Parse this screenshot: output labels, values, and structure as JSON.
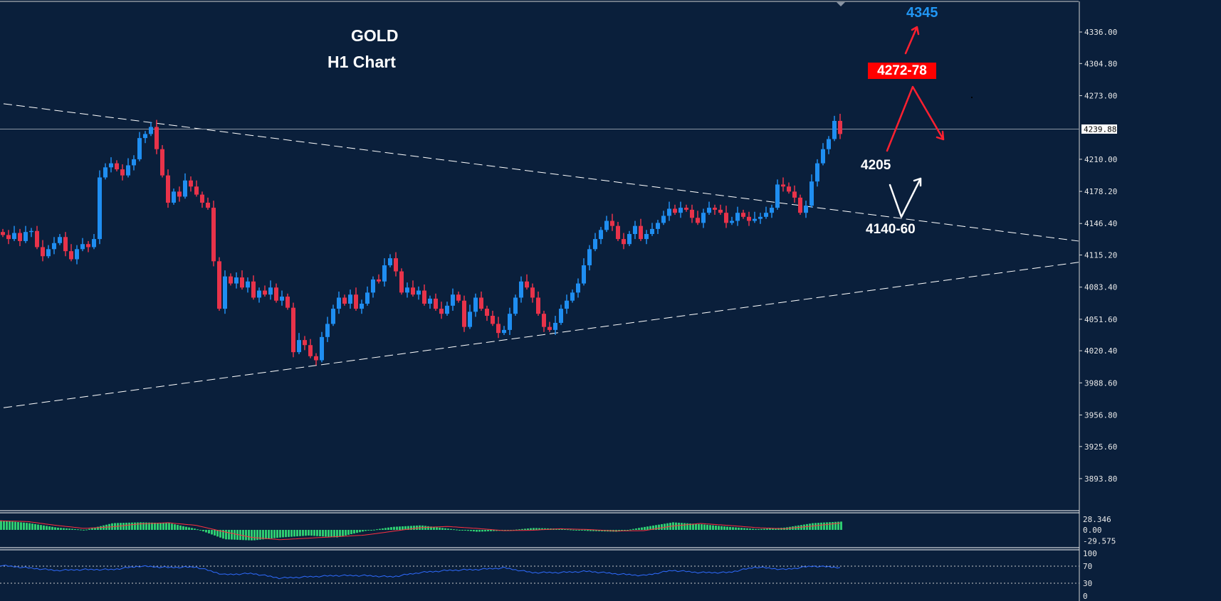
{
  "title": {
    "symbol": "GOLD",
    "timeframe": "H1 Chart"
  },
  "annotations": {
    "target_high": "4345",
    "resistance": "4272-78",
    "pivot": "4205",
    "support": "4140-60"
  },
  "colors": {
    "background": "#0a1f3b",
    "bull_candle": "#1f8ef1",
    "bear_candle": "#e8334a",
    "macd_histogram": "#2ecc71",
    "macd_signal": "#ff3040",
    "rsi_line": "#2f6bff",
    "resistance_box": "#ff0000",
    "target_text": "#2196f3"
  },
  "chart_data": {
    "type": "candlestick",
    "symbol": "GOLD",
    "timeframe": "H1",
    "ylim": [
      3870,
      4370
    ],
    "y_ticks": [
      "4336.00",
      "4304.80",
      "4273.00",
      "4210.00",
      "4178.20",
      "4146.40",
      "4115.20",
      "4083.40",
      "4051.60",
      "4020.40",
      "3988.60",
      "3956.80",
      "3925.60",
      "3893.80"
    ],
    "y_tick_values": [
      4336.0,
      4304.8,
      4273.0,
      4210.0,
      4178.2,
      4146.4,
      4115.2,
      4083.4,
      4051.6,
      4020.4,
      3988.6,
      3956.8,
      3925.6,
      3893.8
    ],
    "current_price": "4239.88",
    "closes": [
      4135,
      4131,
      4137,
      4129,
      4138,
      4139,
      4123,
      4114,
      4121,
      4127,
      4133,
      4119,
      4111,
      4121,
      4126,
      4123,
      4131,
      4192,
      4202,
      4206,
      4200,
      4194,
      4204,
      4210,
      4231,
      4235,
      4242,
      4220,
      4194,
      4167,
      4178,
      4173,
      4189,
      4183,
      4175,
      4167,
      4162,
      4109,
      4062,
      4094,
      4087,
      4093,
      4083,
      4089,
      4073,
      4080,
      4076,
      4083,
      4070,
      4074,
      4063,
      4019,
      4031,
      4026,
      4015,
      4011,
      4034,
      4047,
      4062,
      4073,
      4067,
      4076,
      4062,
      4067,
      4078,
      4091,
      4089,
      4105,
      4112,
      4099,
      4078,
      4083,
      4076,
      4080,
      4067,
      4072,
      4062,
      4057,
      4065,
      4076,
      4070,
      4044,
      4059,
      4073,
      4062,
      4055,
      4047,
      4038,
      4041,
      4057,
      4073,
      4089,
      4083,
      4073,
      4057,
      4044,
      4041,
      4048,
      4062,
      4070,
      4078,
      4087,
      4105,
      4121,
      4131,
      4140,
      4149,
      4144,
      4131,
      4126,
      4136,
      4144,
      4131,
      4136,
      4141,
      4147,
      4154,
      4161,
      4157,
      4162,
      4160,
      4152,
      4147,
      4157,
      4162,
      4160,
      4157,
      4147,
      4149,
      4157,
      4153,
      4149,
      4151,
      4153,
      4157,
      4162,
      4185,
      4183,
      4178,
      4172,
      4157,
      4164,
      4188,
      4206,
      4220,
      4230,
      4248,
      4235
    ],
    "trendlines": [
      {
        "name": "descending-resistance",
        "start_price": 4265,
        "end_price": 4129
      },
      {
        "name": "ascending-support",
        "start_price": 3964,
        "end_price": 4108
      }
    ],
    "macd": {
      "ticks": [
        "28.346",
        "0.00",
        "-29.575"
      ],
      "tick_values": [
        28.346,
        0,
        -29.575
      ],
      "histogram": [
        25,
        18,
        6,
        0,
        18,
        20,
        18,
        2,
        -25,
        -28,
        -20,
        -15,
        -20,
        -3,
        8,
        12,
        3,
        -5,
        -2,
        5,
        3,
        -3,
        -5,
        8,
        20,
        15,
        8,
        2,
        6,
        18,
        22
      ],
      "signal": [
        24,
        22,
        12,
        4,
        8,
        16,
        19,
        12,
        -5,
        -20,
        -26,
        -22,
        -18,
        -14,
        -4,
        6,
        9,
        4,
        -2,
        -1,
        3,
        1,
        -3,
        -2,
        10,
        17,
        12,
        6,
        3,
        10,
        18
      ]
    },
    "rsi": {
      "ticks": [
        "100",
        "70",
        "30",
        "0"
      ],
      "levels": [
        70,
        30
      ],
      "values": [
        72,
        66,
        60,
        62,
        62,
        70,
        67,
        68,
        50,
        53,
        42,
        45,
        48,
        48,
        45,
        55,
        60,
        62,
        66,
        55,
        55,
        58,
        52,
        48,
        60,
        55,
        55,
        68,
        62,
        70,
        67
      ]
    }
  }
}
